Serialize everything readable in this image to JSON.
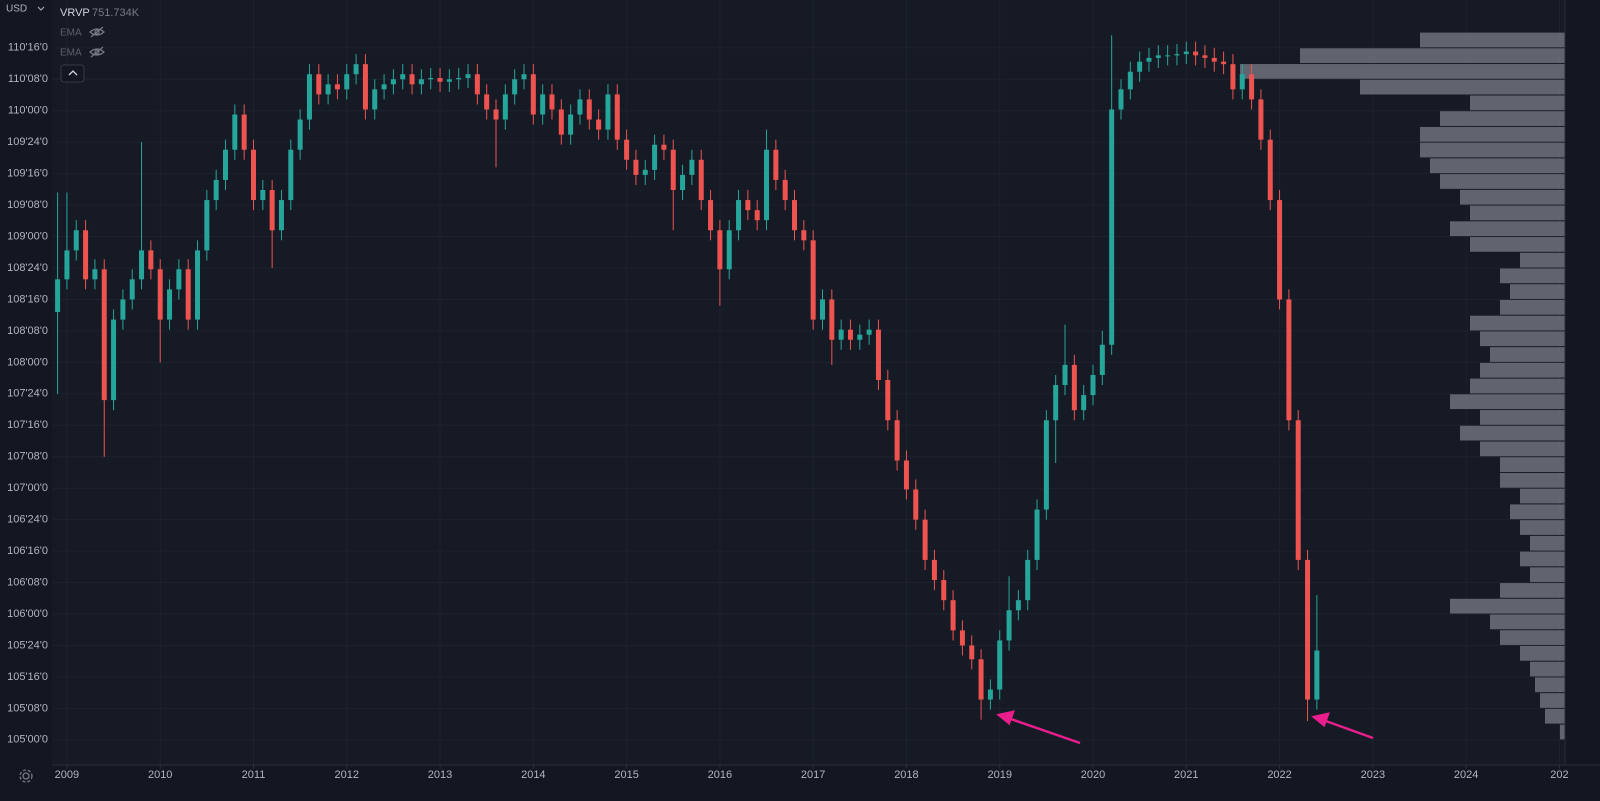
{
  "chart_data": {
    "type": "candlestick",
    "currency": "USD",
    "indicators": [
      {
        "name": "VRVP",
        "value": "751.734K"
      },
      {
        "name": "EMA"
      },
      {
        "name": "EMA"
      }
    ],
    "up_color": "#26a69a",
    "down_color": "#ef5350",
    "grid": true,
    "xlim": [
      2008.84,
      2025.06
    ],
    "xticks": [
      2009,
      2010,
      2011,
      2012,
      2013,
      2014,
      2015,
      2016,
      2017,
      2018,
      2019,
      2020,
      2021,
      2022,
      2023,
      2024,
      {
        "value": 2025,
        "label": "202"
      }
    ],
    "ylim": [
      104.8,
      110.88
    ],
    "yticks": [
      {
        "value": 110.5,
        "label": "110'16'0"
      },
      {
        "value": 110.25,
        "label": "110'08'0"
      },
      {
        "value": 110.0,
        "label": "110'00'0"
      },
      {
        "value": 109.75,
        "label": "109'24'0"
      },
      {
        "value": 109.5,
        "label": "109'16'0"
      },
      {
        "value": 109.25,
        "label": "109'08'0"
      },
      {
        "value": 109.0,
        "label": "109'00'0"
      },
      {
        "value": 108.75,
        "label": "108'24'0"
      },
      {
        "value": 108.5,
        "label": "108'16'0"
      },
      {
        "value": 108.25,
        "label": "108'08'0"
      },
      {
        "value": 108.0,
        "label": "108'00'0"
      },
      {
        "value": 107.75,
        "label": "107'24'0"
      },
      {
        "value": 107.5,
        "label": "107'16'0"
      },
      {
        "value": 107.25,
        "label": "107'08'0"
      },
      {
        "value": 107.0,
        "label": "107'00'0"
      },
      {
        "value": 106.75,
        "label": "106'24'0"
      },
      {
        "value": 106.5,
        "label": "106'16'0"
      },
      {
        "value": 106.25,
        "label": "106'08'0"
      },
      {
        "value": 106.0,
        "label": "106'00'0"
      },
      {
        "value": 105.75,
        "label": "105'24'0"
      },
      {
        "value": 105.5,
        "label": "105'16'0"
      },
      {
        "value": 105.25,
        "label": "105'08'0"
      },
      {
        "value": 105.0,
        "label": "105'00'0"
      }
    ],
    "x": [
      2008.9,
      2009,
      2009.1,
      2009.2,
      2009.3,
      2009.4,
      2009.5,
      2009.6,
      2009.7,
      2009.8,
      2009.9,
      2010,
      2010.1,
      2010.2,
      2010.3,
      2010.4,
      2010.5,
      2010.6,
      2010.7,
      2010.8,
      2010.9,
      2011,
      2011.1,
      2011.2,
      2011.3,
      2011.4,
      2011.5,
      2011.6,
      2011.7,
      2011.8,
      2011.9,
      2012,
      2012.1,
      2012.2,
      2012.3,
      2012.4,
      2012.5,
      2012.6,
      2012.7,
      2012.8,
      2012.9,
      2013,
      2013.1,
      2013.2,
      2013.3,
      2013.4,
      2013.5,
      2013.6,
      2013.7,
      2013.8,
      2013.9,
      2014,
      2014.1,
      2014.2,
      2014.3,
      2014.4,
      2014.5,
      2014.6,
      2014.7,
      2014.8,
      2014.9,
      2015,
      2015.1,
      2015.2,
      2015.3,
      2015.4,
      2015.5,
      2015.6,
      2015.7,
      2015.8,
      2015.9,
      2016,
      2016.1,
      2016.2,
      2016.3,
      2016.4,
      2016.5,
      2016.6,
      2016.7,
      2016.8,
      2016.9,
      2017,
      2017.1,
      2017.2,
      2017.3,
      2017.4,
      2017.5,
      2017.6,
      2017.7,
      2017.8,
      2017.9,
      2018,
      2018.1,
      2018.2,
      2018.3,
      2018.4,
      2018.5,
      2018.6,
      2018.7,
      2018.8,
      2018.9,
      2019,
      2019.1,
      2019.2,
      2019.3,
      2019.4,
      2019.5,
      2019.6,
      2019.7,
      2019.8,
      2019.9,
      2020,
      2020.1,
      2020.2,
      2020.3,
      2020.4,
      2020.5,
      2020.6,
      2020.7,
      2020.8,
      2020.9,
      2021,
      2021.1,
      2021.2,
      2021.3,
      2021.4,
      2021.5,
      2021.6,
      2021.7,
      2021.8,
      2021.9,
      2022,
      2022.1,
      2022.2,
      2022.3,
      2022.4
    ],
    "open": [
      108.4,
      108.66,
      108.89,
      109.05,
      108.66,
      108.74,
      107.7,
      108.34,
      108.5,
      108.66,
      108.89,
      108.74,
      108.34,
      108.58,
      108.74,
      108.34,
      108.89,
      109.29,
      109.45,
      109.69,
      109.97,
      109.69,
      109.29,
      109.37,
      109.05,
      109.29,
      109.69,
      109.93,
      110.29,
      110.13,
      110.21,
      110.17,
      110.29,
      110.37,
      110.01,
      110.17,
      110.21,
      110.25,
      110.29,
      110.21,
      110.25,
      110.26,
      110.23,
      110.25,
      110.26,
      110.29,
      110.13,
      110.01,
      109.93,
      110.13,
      110.25,
      110.29,
      109.97,
      110.13,
      110.01,
      109.81,
      109.97,
      110.09,
      109.93,
      109.85,
      110.13,
      109.77,
      109.61,
      109.49,
      109.53,
      109.73,
      109.69,
      109.37,
      109.49,
      109.61,
      109.29,
      109.05,
      108.74,
      109.05,
      109.29,
      109.21,
      109.13,
      109.69,
      109.45,
      109.29,
      109.05,
      108.97,
      108.34,
      108.5,
      108.18,
      108.26,
      108.18,
      108.22,
      108.26,
      107.86,
      107.54,
      107.22,
      106.99,
      106.75,
      106.43,
      106.27,
      106.11,
      105.87,
      105.75,
      105.64,
      105.32,
      105.4,
      105.79,
      106.03,
      106.11,
      106.43,
      106.83,
      107.54,
      107.82,
      107.98,
      107.62,
      107.74,
      107.9,
      108.14,
      110.01,
      110.17,
      110.31,
      110.39,
      110.42,
      110.44,
      110.44,
      110.45,
      110.47,
      110.44,
      110.42,
      110.39,
      110.37,
      110.17,
      110.29,
      110.09,
      109.77,
      109.29,
      108.5,
      107.54,
      106.43,
      105.32
    ],
    "high": [
      109.35,
      109.35,
      109.13,
      109.13,
      108.82,
      108.82,
      108.42,
      108.58,
      108.74,
      109.75,
      108.97,
      108.82,
      108.66,
      108.82,
      108.82,
      108.97,
      109.37,
      109.53,
      109.77,
      110.05,
      110.05,
      109.77,
      109.45,
      109.45,
      109.37,
      109.77,
      110.01,
      110.37,
      110.37,
      110.29,
      110.29,
      110.37,
      110.45,
      110.45,
      110.25,
      110.29,
      110.33,
      110.37,
      110.37,
      110.33,
      110.34,
      110.34,
      110.33,
      110.34,
      110.37,
      110.37,
      110.21,
      110.09,
      110.21,
      110.33,
      110.37,
      110.37,
      110.21,
      110.21,
      110.09,
      110.05,
      110.17,
      110.17,
      110.01,
      110.21,
      110.21,
      109.85,
      109.69,
      109.61,
      109.81,
      109.81,
      109.77,
      109.57,
      109.69,
      109.69,
      109.37,
      109.13,
      109.13,
      109.37,
      109.37,
      109.29,
      109.85,
      109.77,
      109.53,
      109.37,
      109.13,
      109.05,
      108.58,
      108.58,
      108.34,
      108.34,
      108.3,
      108.34,
      108.34,
      107.94,
      107.62,
      107.3,
      107.07,
      106.83,
      106.51,
      106.35,
      106.19,
      105.95,
      105.83,
      105.72,
      105.48,
      105.87,
      106.3,
      106.19,
      106.51,
      106.91,
      107.62,
      107.9,
      108.3,
      108.06,
      107.82,
      107.98,
      108.25,
      110.6,
      110.25,
      110.39,
      110.47,
      110.5,
      110.52,
      110.52,
      110.53,
      110.55,
      110.55,
      110.52,
      110.5,
      110.47,
      110.45,
      110.37,
      110.37,
      110.17,
      109.85,
      109.37,
      108.58,
      107.62,
      106.51,
      106.15
    ],
    "low": [
      107.75,
      108.58,
      108.81,
      108.58,
      108.58,
      107.25,
      107.62,
      108.26,
      108.42,
      108.58,
      108.66,
      108.0,
      108.26,
      108.5,
      108.26,
      108.26,
      108.81,
      109.21,
      109.37,
      109.61,
      109.61,
      109.21,
      109.21,
      108.75,
      108.97,
      109.21,
      109.61,
      109.85,
      110.05,
      110.05,
      110.09,
      110.09,
      110.21,
      109.93,
      109.93,
      110.09,
      110.13,
      110.17,
      110.13,
      110.13,
      110.17,
      110.15,
      110.15,
      110.17,
      110.18,
      110.05,
      109.93,
      109.55,
      109.85,
      110.05,
      110.17,
      109.89,
      109.89,
      109.93,
      109.73,
      109.73,
      109.89,
      109.85,
      109.77,
      109.77,
      109.69,
      109.53,
      109.41,
      109.41,
      109.45,
      109.61,
      109.05,
      109.29,
      109.41,
      109.21,
      108.97,
      108.45,
      108.66,
      108.97,
      109.13,
      109.05,
      109.05,
      109.37,
      109.21,
      108.97,
      108.89,
      108.26,
      108.26,
      107.98,
      108.1,
      108.1,
      108.1,
      108.14,
      107.78,
      107.46,
      107.14,
      106.91,
      106.67,
      106.35,
      106.19,
      106.03,
      105.79,
      105.67,
      105.56,
      105.16,
      105.24,
      105.32,
      105.71,
      105.95,
      106.03,
      106.35,
      106.75,
      107.2,
      107.74,
      107.54,
      107.54,
      107.66,
      107.82,
      108.06,
      109.93,
      110.09,
      110.23,
      110.31,
      110.34,
      110.36,
      110.36,
      110.37,
      110.36,
      110.34,
      110.31,
      110.29,
      110.09,
      110.09,
      110.01,
      109.69,
      109.21,
      108.42,
      107.46,
      106.35,
      105.15,
      105.24
    ],
    "close": [
      108.66,
      108.89,
      109.05,
      108.66,
      108.74,
      107.7,
      108.34,
      108.5,
      108.66,
      108.89,
      108.74,
      108.34,
      108.58,
      108.74,
      108.34,
      108.89,
      109.29,
      109.45,
      109.69,
      109.97,
      109.69,
      109.29,
      109.37,
      109.05,
      109.29,
      109.69,
      109.93,
      110.29,
      110.13,
      110.21,
      110.17,
      110.29,
      110.37,
      110.01,
      110.17,
      110.21,
      110.25,
      110.29,
      110.21,
      110.25,
      110.26,
      110.23,
      110.25,
      110.26,
      110.29,
      110.13,
      110.01,
      109.93,
      110.13,
      110.25,
      110.29,
      109.97,
      110.13,
      110.01,
      109.81,
      109.97,
      110.09,
      109.93,
      109.85,
      110.13,
      109.77,
      109.61,
      109.49,
      109.53,
      109.73,
      109.69,
      109.37,
      109.49,
      109.61,
      109.29,
      109.05,
      108.74,
      109.05,
      109.29,
      109.21,
      109.13,
      109.69,
      109.45,
      109.29,
      109.05,
      108.97,
      108.34,
      108.5,
      108.18,
      108.26,
      108.18,
      108.22,
      108.26,
      107.86,
      107.54,
      107.22,
      106.99,
      106.75,
      106.43,
      106.27,
      106.11,
      105.87,
      105.75,
      105.64,
      105.32,
      105.4,
      105.79,
      106.03,
      106.11,
      106.43,
      106.83,
      107.54,
      107.82,
      107.98,
      107.62,
      107.74,
      107.9,
      108.14,
      110.01,
      110.17,
      110.31,
      110.39,
      110.42,
      110.44,
      110.44,
      110.45,
      110.47,
      110.44,
      110.42,
      110.39,
      110.37,
      110.17,
      110.29,
      110.09,
      109.77,
      109.29,
      108.5,
      107.54,
      106.43,
      105.32,
      105.71
    ],
    "volume_profile": {
      "color": "#7b7e88",
      "bins": [
        105.0,
        105.125,
        105.25,
        105.375,
        105.5,
        105.625,
        105.75,
        105.875,
        106.0,
        106.125,
        106.25,
        106.375,
        106.5,
        106.625,
        106.75,
        106.875,
        107.0,
        107.125,
        107.25,
        107.375,
        107.5,
        107.625,
        107.75,
        107.875,
        108.0,
        108.125,
        108.25,
        108.375,
        108.5,
        108.625,
        108.75,
        108.875,
        109.0,
        109.125,
        109.25,
        109.375,
        109.5,
        109.625,
        109.75,
        109.875,
        110.0,
        110.125,
        110.25,
        110.375,
        110.5,
        110.625
      ],
      "values": [
        5,
        20,
        25,
        30,
        35,
        45,
        65,
        75,
        115,
        65,
        35,
        45,
        35,
        45,
        55,
        45,
        65,
        65,
        85,
        105,
        85,
        115,
        95,
        85,
        75,
        85,
        95,
        65,
        55,
        65,
        45,
        95,
        115,
        95,
        105,
        125,
        135,
        145,
        145,
        125,
        95,
        205,
        325,
        265,
        145
      ]
    }
  }
}
